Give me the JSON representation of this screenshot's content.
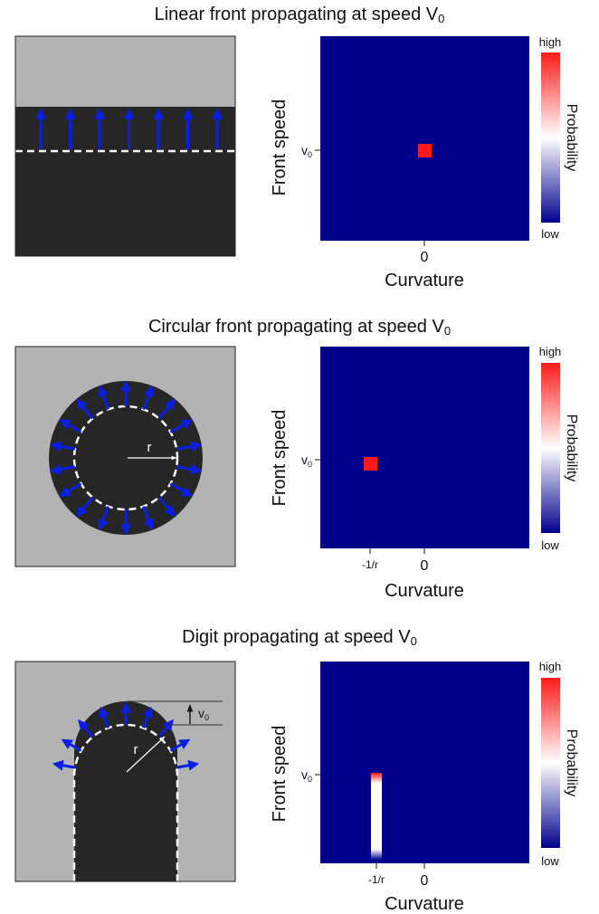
{
  "panels": [
    {
      "title": "Linear front propagating at speed V",
      "title_sub": "0",
      "schematic": {
        "front_shape": "linear",
        "arrow_count": 7
      },
      "chart_data": {
        "type": "heatmap",
        "xlabel": "Curvature",
        "ylabel": "Front speed",
        "x_ticks": [
          "0"
        ],
        "y_tick": "v",
        "y_tick_sub": "0",
        "colorbar": {
          "label": "Probability",
          "high": "high",
          "low": "low"
        },
        "peak": {
          "curvature": "0",
          "speed": "v0",
          "value": "high",
          "spread": "point"
        }
      }
    },
    {
      "title": "Circular front propagating at speed V",
      "title_sub": "0",
      "schematic": {
        "front_shape": "circular",
        "radius_label": "r",
        "arrow_count": 18
      },
      "chart_data": {
        "type": "heatmap",
        "xlabel": "Curvature",
        "ylabel": "Front speed",
        "x_ticks": [
          "-1/r",
          "0"
        ],
        "y_tick": "v",
        "y_tick_sub": "0",
        "colorbar": {
          "label": "Probability",
          "high": "high",
          "low": "low"
        },
        "peak": {
          "curvature": "-1/r",
          "speed": "v0",
          "value": "high",
          "spread": "point"
        }
      }
    },
    {
      "title": "Digit propagating at speed V",
      "title_sub": "0",
      "schematic": {
        "front_shape": "digit",
        "radius_label": "r",
        "speed_label": "v",
        "speed_label_sub": "0",
        "arrow_count": 9
      },
      "chart_data": {
        "type": "heatmap",
        "xlabel": "Curvature",
        "ylabel": "Front speed",
        "x_ticks": [
          "-1/r",
          "0"
        ],
        "y_tick": "v",
        "y_tick_sub": "0",
        "colorbar": {
          "label": "Probability",
          "high": "high",
          "low": "low"
        },
        "peak": {
          "curvature": "-1/r",
          "speed": "0 to v0",
          "value": "high at v0, fading toward 0",
          "spread": "vertical band"
        }
      }
    }
  ],
  "colors": {
    "background_gray": "#b3b3b3",
    "tissue_dark": "#262626",
    "arrow_blue": "#0a1ee6",
    "heatmap_low": "#00008c",
    "heatmap_mid": "#ffffff",
    "heatmap_high": "#ff1a1a"
  }
}
